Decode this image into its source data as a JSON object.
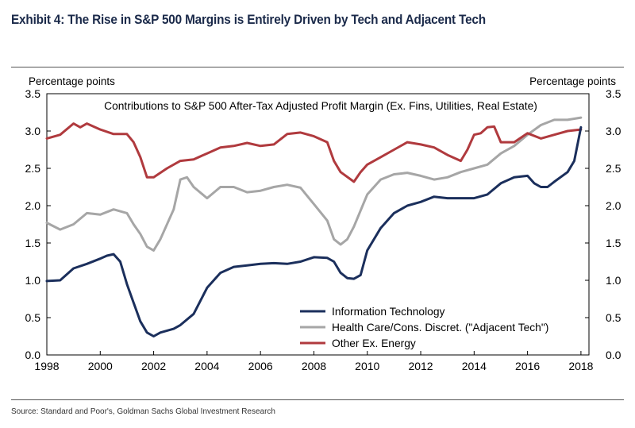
{
  "title": "Exhibit 4: The Rise in S&P 500 Margins is Entirely Driven by Tech and Adjacent Tech",
  "source": "Source: Standard and Poor's, Goldman Sachs Global Investment Research",
  "chart_data": {
    "type": "line",
    "title": "Contributions to S&P 500 After-Tax Adjusted Profit Margin (Ex. Fins, Utilities, Real Estate)",
    "ylabel_left": "Percentage points",
    "ylabel_right": "Percentage points",
    "xlim": [
      1998,
      2018.3
    ],
    "ylim": [
      0,
      3.5
    ],
    "x_ticks": [
      1998,
      2000,
      2002,
      2004,
      2006,
      2008,
      2010,
      2012,
      2014,
      2016,
      2018
    ],
    "y_ticks": [
      0.0,
      0.5,
      1.0,
      1.5,
      2.0,
      2.5,
      3.0,
      3.5
    ],
    "y_tick_labels": [
      "0.0",
      "0.5",
      "1.0",
      "1.5",
      "2.0",
      "2.5",
      "3.0",
      "3.5"
    ],
    "legend_position": "bottom-right",
    "series": [
      {
        "name": "Information Technology",
        "color": "#1b2f5c",
        "points": [
          [
            1998,
            0.99
          ],
          [
            1998.5,
            1.0
          ],
          [
            1999,
            1.16
          ],
          [
            1999.5,
            1.22
          ],
          [
            2000,
            1.29
          ],
          [
            2000.25,
            1.33
          ],
          [
            2000.5,
            1.35
          ],
          [
            2000.75,
            1.25
          ],
          [
            2001,
            0.95
          ],
          [
            2001.25,
            0.7
          ],
          [
            2001.5,
            0.45
          ],
          [
            2001.75,
            0.3
          ],
          [
            2002,
            0.25
          ],
          [
            2002.25,
            0.3
          ],
          [
            2002.75,
            0.35
          ],
          [
            2003,
            0.4
          ],
          [
            2003.5,
            0.55
          ],
          [
            2004,
            0.9
          ],
          [
            2004.5,
            1.1
          ],
          [
            2005,
            1.18
          ],
          [
            2005.5,
            1.2
          ],
          [
            2006,
            1.22
          ],
          [
            2006.5,
            1.23
          ],
          [
            2007,
            1.22
          ],
          [
            2007.5,
            1.25
          ],
          [
            2008,
            1.31
          ],
          [
            2008.5,
            1.3
          ],
          [
            2008.75,
            1.25
          ],
          [
            2009,
            1.1
          ],
          [
            2009.25,
            1.03
          ],
          [
            2009.5,
            1.02
          ],
          [
            2009.75,
            1.07
          ],
          [
            2010,
            1.4
          ],
          [
            2010.5,
            1.7
          ],
          [
            2011,
            1.9
          ],
          [
            2011.5,
            2.0
          ],
          [
            2012,
            2.05
          ],
          [
            2012.5,
            2.12
          ],
          [
            2013,
            2.1
          ],
          [
            2013.5,
            2.1
          ],
          [
            2014,
            2.1
          ],
          [
            2014.5,
            2.15
          ],
          [
            2015,
            2.3
          ],
          [
            2015.5,
            2.38
          ],
          [
            2016,
            2.4
          ],
          [
            2016.25,
            2.3
          ],
          [
            2016.5,
            2.25
          ],
          [
            2016.75,
            2.25
          ],
          [
            2017,
            2.32
          ],
          [
            2017.5,
            2.45
          ],
          [
            2017.75,
            2.6
          ],
          [
            2018,
            3.05
          ]
        ]
      },
      {
        "name": "Health Care/Cons. Discret. (\"Adjacent Tech\")",
        "color": "#a6a6a6",
        "points": [
          [
            1998,
            1.77
          ],
          [
            1998.5,
            1.68
          ],
          [
            1999,
            1.75
          ],
          [
            1999.5,
            1.9
          ],
          [
            2000,
            1.88
          ],
          [
            2000.5,
            1.95
          ],
          [
            2001,
            1.9
          ],
          [
            2001.25,
            1.75
          ],
          [
            2001.5,
            1.62
          ],
          [
            2001.75,
            1.45
          ],
          [
            2002,
            1.4
          ],
          [
            2002.25,
            1.55
          ],
          [
            2002.75,
            1.95
          ],
          [
            2003,
            2.35
          ],
          [
            2003.25,
            2.38
          ],
          [
            2003.5,
            2.25
          ],
          [
            2004,
            2.1
          ],
          [
            2004.5,
            2.25
          ],
          [
            2005,
            2.25
          ],
          [
            2005.5,
            2.18
          ],
          [
            2006,
            2.2
          ],
          [
            2006.5,
            2.25
          ],
          [
            2007,
            2.28
          ],
          [
            2007.5,
            2.24
          ],
          [
            2008,
            2.02
          ],
          [
            2008.5,
            1.8
          ],
          [
            2008.75,
            1.55
          ],
          [
            2009,
            1.48
          ],
          [
            2009.25,
            1.55
          ],
          [
            2009.5,
            1.72
          ],
          [
            2010,
            2.15
          ],
          [
            2010.5,
            2.35
          ],
          [
            2011,
            2.42
          ],
          [
            2011.5,
            2.44
          ],
          [
            2012,
            2.4
          ],
          [
            2012.5,
            2.35
          ],
          [
            2013,
            2.38
          ],
          [
            2013.5,
            2.45
          ],
          [
            2014,
            2.5
          ],
          [
            2014.5,
            2.55
          ],
          [
            2015,
            2.7
          ],
          [
            2015.5,
            2.8
          ],
          [
            2016,
            2.95
          ],
          [
            2016.5,
            3.08
          ],
          [
            2017,
            3.15
          ],
          [
            2017.5,
            3.15
          ],
          [
            2018,
            3.18
          ]
        ]
      },
      {
        "name": "Other Ex. Energy",
        "color": "#b03a3e",
        "points": [
          [
            1998,
            2.9
          ],
          [
            1998.5,
            2.95
          ],
          [
            1999,
            3.1
          ],
          [
            1999.25,
            3.05
          ],
          [
            1999.5,
            3.1
          ],
          [
            2000,
            3.02
          ],
          [
            2000.5,
            2.96
          ],
          [
            2001,
            2.96
          ],
          [
            2001.25,
            2.85
          ],
          [
            2001.5,
            2.65
          ],
          [
            2001.75,
            2.38
          ],
          [
            2002,
            2.38
          ],
          [
            2002.5,
            2.5
          ],
          [
            2003,
            2.6
          ],
          [
            2003.5,
            2.62
          ],
          [
            2004,
            2.7
          ],
          [
            2004.5,
            2.78
          ],
          [
            2005,
            2.8
          ],
          [
            2005.5,
            2.84
          ],
          [
            2006,
            2.8
          ],
          [
            2006.5,
            2.82
          ],
          [
            2007,
            2.96
          ],
          [
            2007.5,
            2.98
          ],
          [
            2008,
            2.93
          ],
          [
            2008.5,
            2.85
          ],
          [
            2008.75,
            2.6
          ],
          [
            2009,
            2.45
          ],
          [
            2009.5,
            2.32
          ],
          [
            2009.75,
            2.45
          ],
          [
            2010,
            2.55
          ],
          [
            2010.5,
            2.65
          ],
          [
            2011,
            2.75
          ],
          [
            2011.5,
            2.85
          ],
          [
            2012,
            2.82
          ],
          [
            2012.5,
            2.78
          ],
          [
            2013,
            2.68
          ],
          [
            2013.5,
            2.6
          ],
          [
            2013.75,
            2.75
          ],
          [
            2014,
            2.95
          ],
          [
            2014.25,
            2.97
          ],
          [
            2014.5,
            3.05
          ],
          [
            2014.75,
            3.06
          ],
          [
            2015,
            2.85
          ],
          [
            2015.5,
            2.85
          ],
          [
            2016,
            2.97
          ],
          [
            2016.5,
            2.9
          ],
          [
            2017,
            2.95
          ],
          [
            2017.5,
            3.0
          ],
          [
            2018,
            3.02
          ]
        ]
      }
    ]
  }
}
